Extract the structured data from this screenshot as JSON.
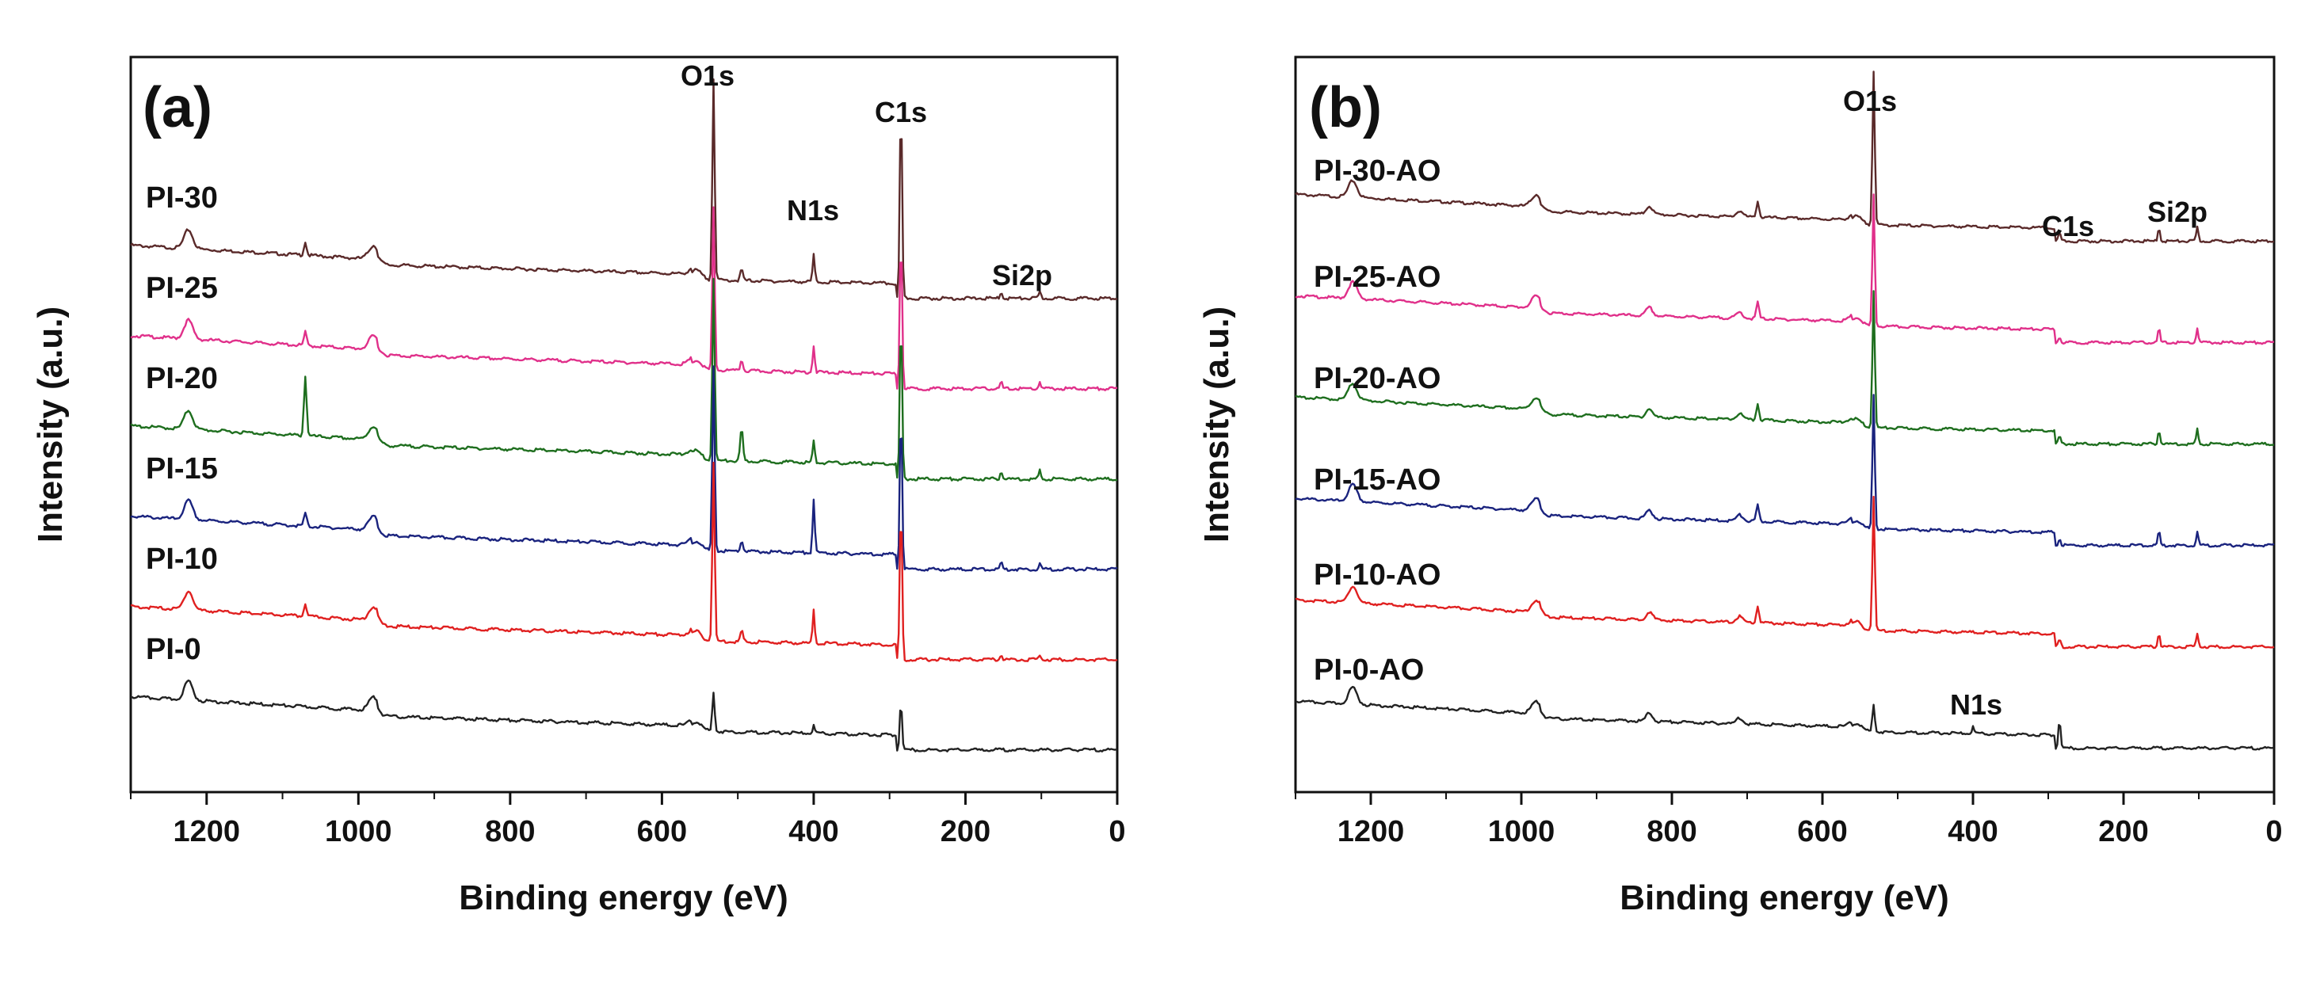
{
  "chart_data": [
    {
      "type": "line",
      "title": "(a)",
      "xlabel": "Binding energy (eV)",
      "ylabel": "Intensity (a.u.)",
      "xlim": [
        1300,
        0
      ],
      "xreversed": true,
      "xticks": [
        1200,
        1000,
        800,
        600,
        400,
        200,
        0
      ],
      "grid": false,
      "series": [
        {
          "name": "PI-30",
          "color": "#5a2a2a",
          "offset": 5,
          "peaks": {
            "O1s": 7.5,
            "N1s": 1.0,
            "C1s": 7.2,
            "Si2p": 0.25
          }
        },
        {
          "name": "PI-25",
          "color": "#e0308a",
          "offset": 4,
          "peaks": {
            "O1s": 6.0,
            "N1s": 1.0,
            "C1s": 5.8,
            "Si2p": 0.25
          }
        },
        {
          "name": "PI-20",
          "color": "#1e6e1e",
          "offset": 3,
          "peaks": {
            "O1s": 6.8,
            "N1s": 0.8,
            "C1s": 6.0,
            "Si2p": 0.3
          }
        },
        {
          "name": "PI-15",
          "color": "#1a237e",
          "offset": 2,
          "peaks": {
            "O1s": 6.8,
            "N1s": 2.0,
            "C1s": 6.0,
            "Si2p": 0.25
          }
        },
        {
          "name": "PI-10",
          "color": "#e02020",
          "offset": 1,
          "peaks": {
            "O1s": 6.6,
            "N1s": 1.2,
            "C1s": 5.8,
            "Si2p": 0.2
          }
        },
        {
          "name": "PI-0",
          "color": "#222222",
          "offset": 0,
          "peaks": {
            "O1s": 1.5,
            "N1s": 0.3,
            "C1s": 1.8,
            "Si2p": 0.0
          }
        }
      ],
      "annotations": [
        {
          "text": "O1s",
          "x": 532
        },
        {
          "text": "N1s",
          "x": 400
        },
        {
          "text": "C1s",
          "x": 285
        },
        {
          "text": "Si2p",
          "x": 150
        }
      ]
    },
    {
      "type": "line",
      "title": "(b)",
      "xlabel": "Binding energy (eV)",
      "ylabel": "Intensity (a.u.)",
      "xlim": [
        1300,
        0
      ],
      "xreversed": true,
      "xticks": [
        1200,
        1000,
        800,
        600,
        400,
        200,
        0
      ],
      "grid": false,
      "series": [
        {
          "name": "PI-30-AO",
          "color": "#5a2a2a",
          "offset": 5,
          "peaks": {
            "O1s": 6.5,
            "N1s": 0.0,
            "C1s": 0.3,
            "Si2p": 0.6
          }
        },
        {
          "name": "PI-25-AO",
          "color": "#e0308a",
          "offset": 4,
          "peaks": {
            "O1s": 5.5,
            "N1s": 0.0,
            "C1s": 0.25,
            "Si2p": 0.6
          }
        },
        {
          "name": "PI-20-AO",
          "color": "#1e6e1e",
          "offset": 3,
          "peaks": {
            "O1s": 5.8,
            "N1s": 0.0,
            "C1s": 0.3,
            "Si2p": 0.6
          }
        },
        {
          "name": "PI-15-AO",
          "color": "#1a237e",
          "offset": 2,
          "peaks": {
            "O1s": 5.6,
            "N1s": 0.0,
            "C1s": 0.3,
            "Si2p": 0.6
          }
        },
        {
          "name": "PI-10-AO",
          "color": "#e02020",
          "offset": 1,
          "peaks": {
            "O1s": 5.6,
            "N1s": 0.0,
            "C1s": 0.3,
            "Si2p": 0.6
          }
        },
        {
          "name": "PI-0-AO",
          "color": "#222222",
          "offset": 0,
          "peaks": {
            "O1s": 1.2,
            "N1s": 0.3,
            "C1s": 1.2,
            "Si2p": 0.0
          }
        }
      ],
      "annotations": [
        {
          "text": "O1s",
          "x": 532
        },
        {
          "text": "C1s",
          "x": 285
        },
        {
          "text": "Si2p",
          "x": 130
        },
        {
          "text": "N1s",
          "x": 400
        }
      ]
    }
  ]
}
